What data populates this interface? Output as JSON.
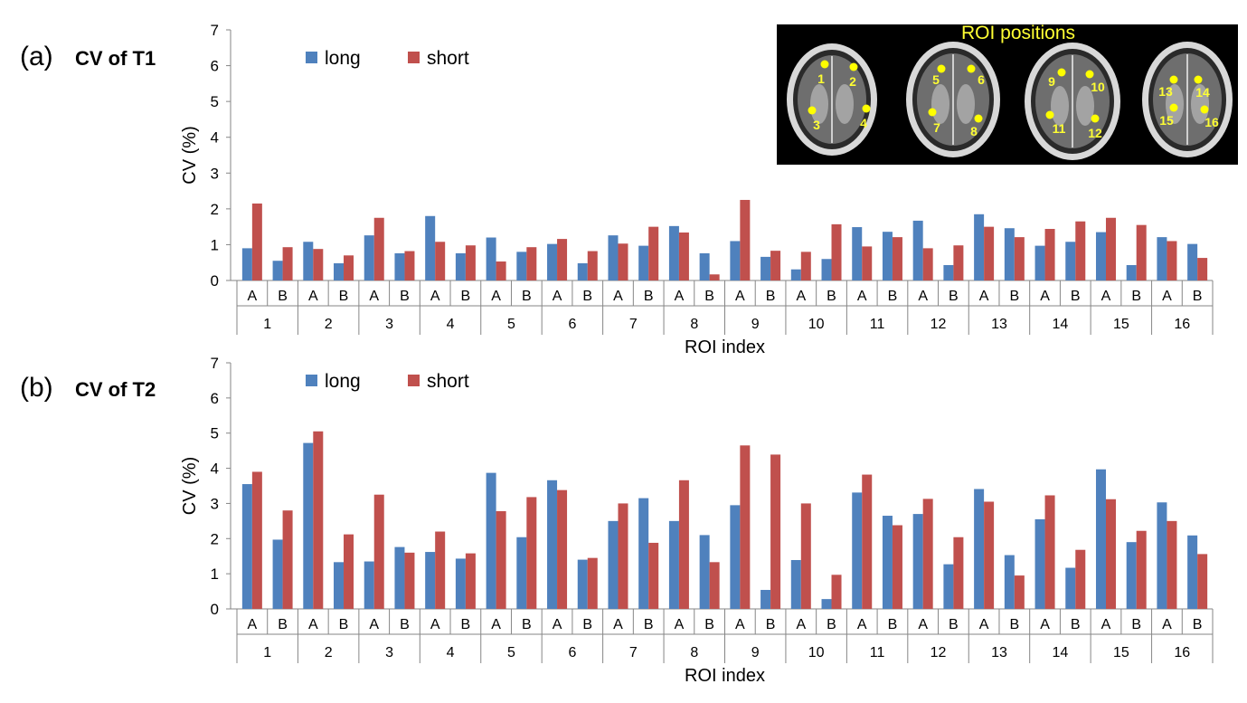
{
  "colors": {
    "long": "#4f81bd",
    "short": "#c0504d",
    "axis": "#868686",
    "marker": "#ffff00"
  },
  "inset": {
    "title": "ROI positions",
    "labels": [
      "1",
      "2",
      "3",
      "4",
      "5",
      "6",
      "7",
      "8",
      "9",
      "10",
      "11",
      "12",
      "13",
      "14",
      "15",
      "16"
    ]
  },
  "chart_data": [
    {
      "type": "bar",
      "panel_label": "(a)",
      "title": "CV of T1",
      "xlabel": "ROI index",
      "ylabel": "CV (%)",
      "ylim": [
        0,
        7
      ],
      "yticks": [
        0,
        1,
        2,
        3,
        4,
        5,
        6,
        7
      ],
      "groups": [
        "1",
        "2",
        "3",
        "4",
        "5",
        "6",
        "7",
        "8",
        "9",
        "10",
        "11",
        "12",
        "13",
        "14",
        "15",
        "16"
      ],
      "subcategories": [
        "A",
        "B"
      ],
      "series": [
        {
          "name": "long",
          "values": [
            0.9,
            0.55,
            1.08,
            0.48,
            1.26,
            0.76,
            1.8,
            0.76,
            1.2,
            0.8,
            1.02,
            0.48,
            1.26,
            0.97,
            1.52,
            0.76,
            1.1,
            0.66,
            0.31,
            0.6,
            1.49,
            1.36,
            1.67,
            0.43,
            1.85,
            1.46,
            0.97,
            1.08,
            1.35,
            0.43,
            1.21,
            1.02
          ]
        },
        {
          "name": "short",
          "values": [
            2.15,
            0.93,
            0.88,
            0.7,
            1.75,
            0.82,
            1.08,
            0.98,
            0.53,
            0.93,
            1.16,
            0.82,
            1.03,
            1.5,
            1.34,
            0.17,
            2.25,
            0.83,
            0.8,
            1.57,
            0.95,
            1.21,
            0.9,
            0.98,
            1.5,
            1.21,
            1.44,
            1.65,
            1.75,
            1.55,
            1.1,
            0.63
          ]
        }
      ]
    },
    {
      "type": "bar",
      "panel_label": "(b)",
      "title": "CV of T2",
      "xlabel": "ROI index",
      "ylabel": "CV (%)",
      "ylim": [
        0,
        7
      ],
      "yticks": [
        0,
        1,
        2,
        3,
        4,
        5,
        6,
        7
      ],
      "groups": [
        "1",
        "2",
        "3",
        "4",
        "5",
        "6",
        "7",
        "8",
        "9",
        "10",
        "11",
        "12",
        "13",
        "14",
        "15",
        "16"
      ],
      "subcategories": [
        "A",
        "B"
      ],
      "series": [
        {
          "name": "long",
          "values": [
            3.55,
            1.97,
            4.72,
            1.33,
            1.35,
            1.76,
            1.62,
            1.43,
            3.87,
            2.04,
            3.66,
            1.4,
            2.5,
            3.15,
            2.5,
            2.1,
            2.95,
            0.54,
            1.39,
            0.28,
            3.31,
            2.65,
            2.7,
            1.27,
            3.41,
            1.53,
            2.55,
            1.17,
            3.97,
            1.9,
            3.03,
            2.09
          ]
        },
        {
          "name": "short",
          "values": [
            3.9,
            2.8,
            5.05,
            2.12,
            3.25,
            1.6,
            2.2,
            1.58,
            2.78,
            3.18,
            3.38,
            1.45,
            3.0,
            1.88,
            3.66,
            1.33,
            4.65,
            4.39,
            3.0,
            0.97,
            3.82,
            2.38,
            3.13,
            2.04,
            3.05,
            0.95,
            3.23,
            1.68,
            3.12,
            2.22,
            2.5,
            1.56
          ]
        }
      ]
    }
  ]
}
